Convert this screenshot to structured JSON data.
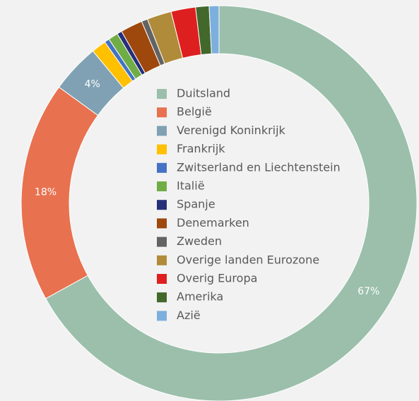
{
  "chart_data": {
    "type": "donut",
    "categories": [
      "Duitsland",
      "België",
      "Verenigd Koninkrijk",
      "Frankrijk",
      "Zwitserland en Liechtenstein",
      "Italië",
      "Spanje",
      "Denemarken",
      "Zweden",
      "Overige landen Eurozone",
      "Overig Europa",
      "Amerika",
      "Azië"
    ],
    "values": [
      67,
      18,
      4,
      1.2,
      0.4,
      0.8,
      0.4,
      1.8,
      0.5,
      2,
      2,
      1.1,
      0.8
    ],
    "value_labels": [
      "67%",
      "18%",
      "4%",
      null,
      null,
      null,
      null,
      null,
      null,
      null,
      null,
      null,
      null
    ],
    "colors": [
      "#9bbfab",
      "#e8714f",
      "#7fa1b3",
      "#ffc000",
      "#4472c4",
      "#70ad47",
      "#262f7a",
      "#9e480e",
      "#636363",
      "#b08b3a",
      "#de1f1f",
      "#43682b",
      "#7cafdd"
    ]
  }
}
